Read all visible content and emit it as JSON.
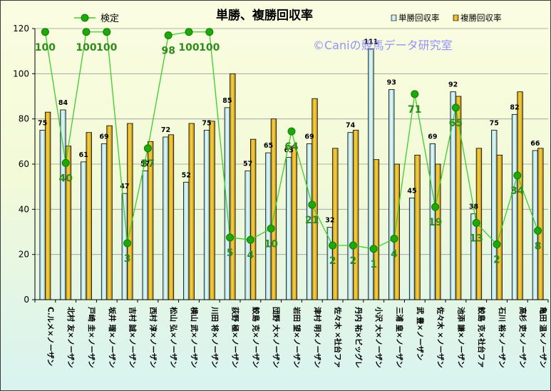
{
  "chart_data": {
    "type": "bar",
    "title": "単勝、複勝回収率",
    "watermark": "©Caniの競馬データ研究室",
    "categories": [
      "C.ルメ×ノーザン",
      "北村 友×ノーザン",
      "戸崎 圭×ノーザン",
      "坂井 瑠×ノーザン",
      "吉村 誠×ノーザン",
      "西村 淳×ノーザン",
      "松山 弘×ノーザン",
      "横山 武×ノーザン",
      "川田 将×ノーザン",
      "荻野 極×ノーザン",
      "鮫島 克×ノーザン",
      "団野 大×ノーザン",
      "岩田 望×ノーザン",
      "津村 明×ノーザン",
      "佐々木 ×社台ファ",
      "丹内 祐×ビッグレ",
      "小沢 大×ノーザン",
      "三浦 皇×ノーザン",
      "武 豊×ノーザン",
      "佐々木 ×ノーザン",
      "池添 謙×ノーザン",
      "鮫島 克×社台ファ",
      "石川 裕×ノーザン",
      "高杉 吏×ノーザン",
      "亀田 温×ノーザン"
    ],
    "series": [
      {
        "name": "単勝回収率",
        "type": "bar",
        "color": "#c8eef2",
        "values": [
          75,
          84,
          61,
          69,
          47,
          57,
          72,
          52,
          75,
          85,
          57,
          65,
          63,
          69,
          32,
          74,
          111,
          93,
          45,
          69,
          92,
          38,
          75,
          82,
          66
        ]
      },
      {
        "name": "複勝回収率",
        "type": "bar",
        "color": "#e8b818",
        "values": [
          83,
          68,
          74,
          77,
          78,
          70,
          73,
          78,
          79,
          100,
          71,
          80,
          68,
          89,
          67,
          75,
          62,
          60,
          64,
          60,
          90,
          67,
          64,
          92,
          67
        ]
      },
      {
        "name": "検定",
        "type": "line",
        "color": "#22aa00",
        "values": [
          100,
          40,
          100,
          100,
          3,
          57,
          98,
          100,
          100,
          5,
          4,
          10,
          64,
          21,
          2,
          2,
          1,
          4,
          71,
          19,
          65,
          13,
          2,
          34,
          8
        ],
        "point_y": [
          118.5,
          60.5,
          118.5,
          118.5,
          25,
          67,
          117,
          118.5,
          118.5,
          27.5,
          26.5,
          31.5,
          74.5,
          42,
          24,
          24,
          22.5,
          27,
          91,
          41,
          85,
          34,
          24.5,
          55,
          30.5
        ]
      }
    ],
    "ylim": [
      0,
      120
    ],
    "yticks": [
      "0",
      "20",
      "40",
      "60",
      "80",
      "100",
      "120"
    ],
    "grid": true,
    "legend_bars": "top-right",
    "legend_line": "top-left"
  }
}
